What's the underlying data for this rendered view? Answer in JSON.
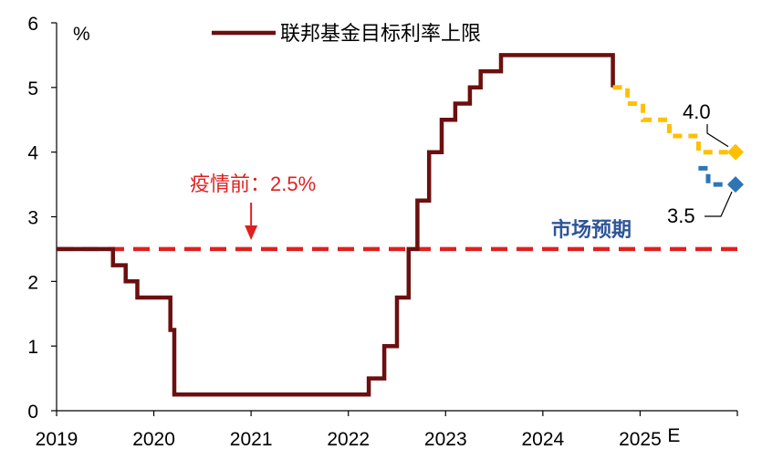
{
  "chart_data": {
    "type": "line",
    "ylabel": "%",
    "ylim": [
      0,
      6
    ],
    "yticks": [
      0,
      1,
      2,
      3,
      4,
      5,
      6
    ],
    "xlim": [
      2019,
      2026
    ],
    "xticks": [
      {
        "value": 2019,
        "label": "2019"
      },
      {
        "value": 2020,
        "label": "2020"
      },
      {
        "value": 2021,
        "label": "2021"
      },
      {
        "value": 2022,
        "label": "2022"
      },
      {
        "value": 2023,
        "label": "2023"
      },
      {
        "value": 2024,
        "label": "2024"
      },
      {
        "value": 2025,
        "label": "2025"
      }
    ],
    "xtick_suffix": "E",
    "legend_position": "top-center",
    "grid": false,
    "series": [
      {
        "name": "联邦基金目标利率上限",
        "kind": "step",
        "color": "#6b0f0f",
        "points": [
          [
            2019.0,
            2.5
          ],
          [
            2019.58,
            2.25
          ],
          [
            2019.71,
            2.0
          ],
          [
            2019.83,
            1.75
          ],
          [
            2020.17,
            1.25
          ],
          [
            2020.21,
            0.25
          ],
          [
            2022.21,
            0.5
          ],
          [
            2022.37,
            1.0
          ],
          [
            2022.5,
            1.75
          ],
          [
            2022.62,
            2.5
          ],
          [
            2022.71,
            3.25
          ],
          [
            2022.83,
            4.0
          ],
          [
            2022.96,
            4.5
          ],
          [
            2023.1,
            4.75
          ],
          [
            2023.25,
            5.0
          ],
          [
            2023.36,
            5.25
          ],
          [
            2023.57,
            5.5
          ],
          [
            2024.72,
            5.0
          ]
        ],
        "end_x": 2024.72
      },
      {
        "name": "",
        "kind": "step",
        "color": "#ffc000",
        "dashed": true,
        "points": [
          [
            2024.72,
            5.0
          ],
          [
            2024.87,
            4.75
          ],
          [
            2025.03,
            4.5
          ],
          [
            2025.3,
            4.25
          ],
          [
            2025.6,
            4.0
          ]
        ],
        "end_x": 2026.0
      },
      {
        "name": "",
        "kind": "step",
        "color": "#2e75b6",
        "dashed": true,
        "points": [
          [
            2025.6,
            3.75
          ],
          [
            2025.7,
            3.5
          ]
        ],
        "end_x": 2026.0
      }
    ],
    "reference_line": {
      "y": 2.5,
      "color": "#e02020",
      "label": "疫情前：2.5%",
      "label_x": 2021
    },
    "annotations": [
      {
        "text": "4.0",
        "x": 2026.0,
        "y": 4.0,
        "color": "#ffc000"
      },
      {
        "text": "3.5",
        "x": 2026.0,
        "y": 3.5,
        "color": "#2e75b6"
      }
    ],
    "market_label": {
      "text": "市场预期",
      "color": "#2e5597"
    }
  }
}
